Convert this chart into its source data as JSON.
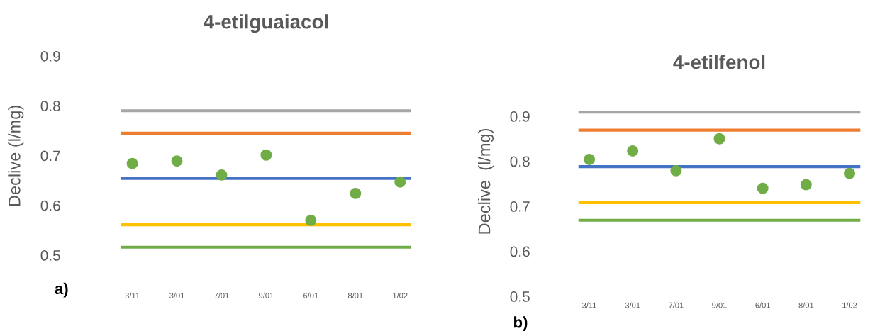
{
  "chart_data": [
    {
      "type": "scatter",
      "title": "4-etilguaiacol",
      "ylabel": "Declive (l/mg)",
      "categories": [
        "3/11",
        "3/01",
        "7/01",
        "9/01",
        "6/01",
        "8/01",
        "1/02"
      ],
      "series": [
        {
          "color": "#70ad47",
          "values": [
            0.684,
            0.689,
            0.661,
            0.701,
            0.57,
            0.624,
            0.647
          ]
        }
      ],
      "ylim": [
        0.5,
        0.9
      ],
      "yticks": [
        0.5,
        0.6,
        0.7,
        0.8,
        0.9
      ],
      "marker": "circle",
      "grid": false,
      "legend": false,
      "ref_lines": [
        {
          "axis": "y",
          "value": 0.79,
          "color": "#a5a5a5"
        },
        {
          "axis": "y",
          "value": 0.745,
          "color": "#ed7d31"
        },
        {
          "axis": "y",
          "value": 0.654,
          "color": "#4472c4"
        },
        {
          "axis": "y",
          "value": 0.561,
          "color": "#ffc000"
        },
        {
          "axis": "y",
          "value": 0.516,
          "color": "#70ad47"
        }
      ],
      "annotations": [
        "a)"
      ]
    },
    {
      "type": "scatter",
      "title": "4-etilfenol",
      "ylabel": "Declive  (l/mg)",
      "categories": [
        "3/11",
        "3/01",
        "7/01",
        "9/01",
        "6/01",
        "8/01",
        "1/02"
      ],
      "series": [
        {
          "color": "#70ad47",
          "values": [
            0.804,
            0.823,
            0.779,
            0.85,
            0.74,
            0.748,
            0.773
          ]
        }
      ],
      "ylim": [
        0.5,
        0.9
      ],
      "yticks": [
        0.5,
        0.6,
        0.7,
        0.8,
        0.9
      ],
      "marker": "circle",
      "grid": false,
      "legend": false,
      "ref_lines": [
        {
          "axis": "y",
          "value": 0.909,
          "color": "#a5a5a5"
        },
        {
          "axis": "y",
          "value": 0.869,
          "color": "#ed7d31"
        },
        {
          "axis": "y",
          "value": 0.788,
          "color": "#4472c4"
        },
        {
          "axis": "y",
          "value": 0.708,
          "color": "#ffc000"
        },
        {
          "axis": "y",
          "value": 0.669,
          "color": "#70ad47"
        }
      ],
      "annotations": [
        "b)"
      ]
    }
  ]
}
